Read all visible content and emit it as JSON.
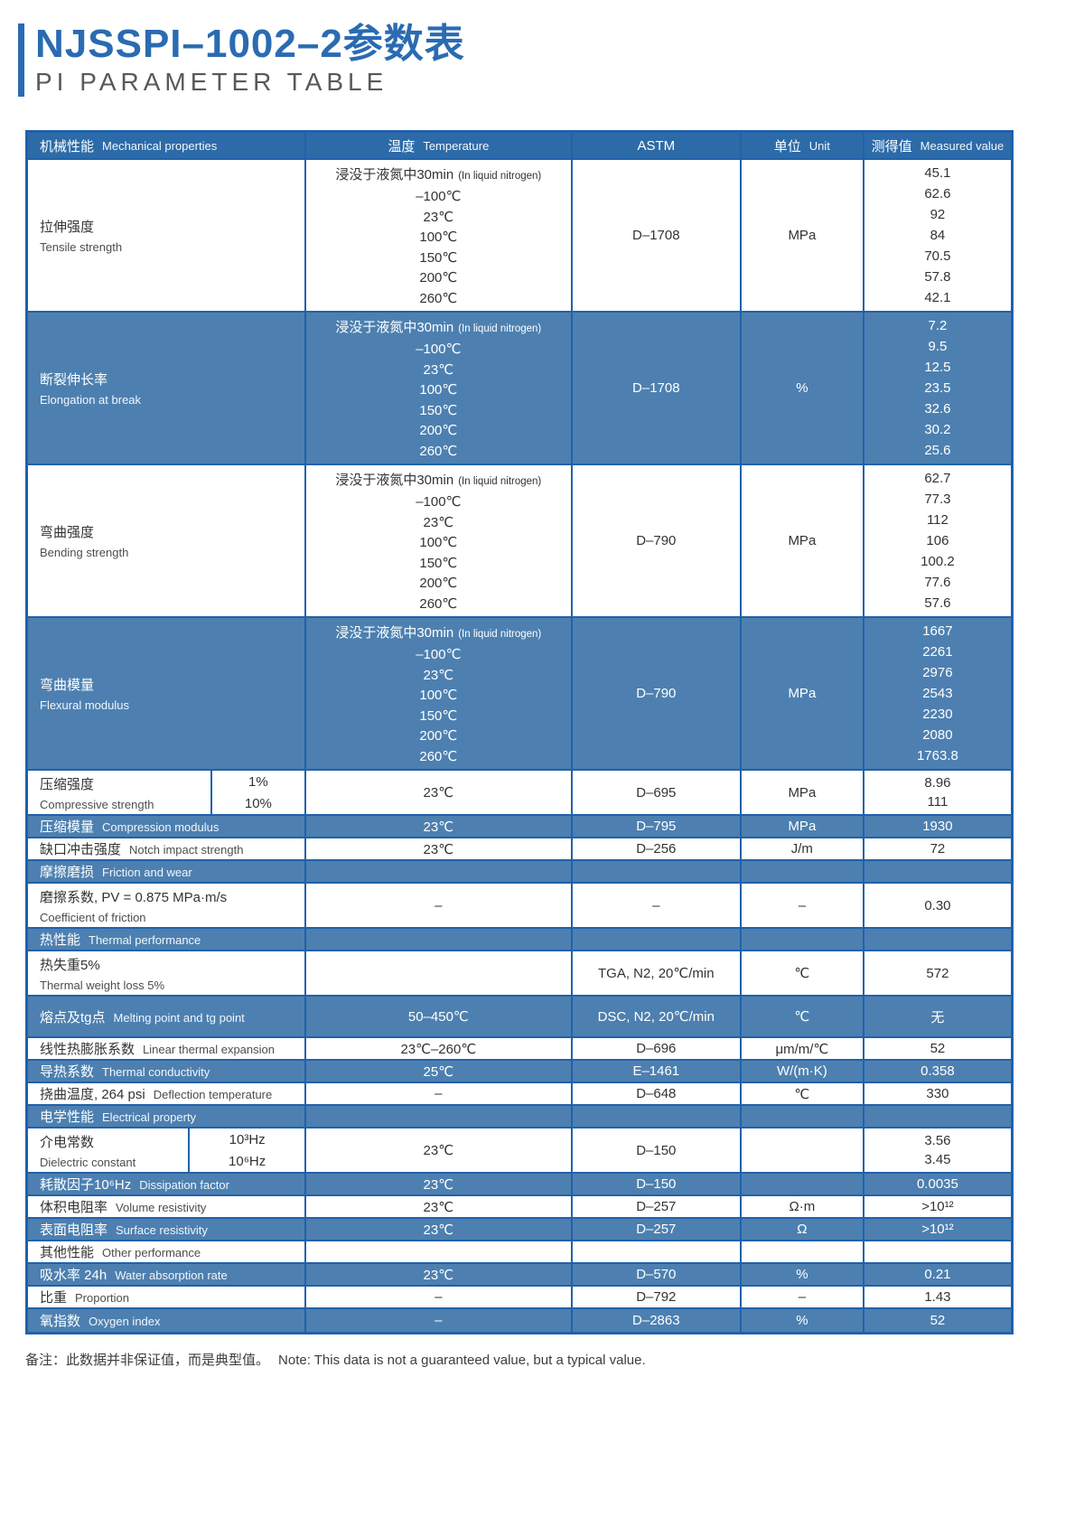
{
  "page": {
    "title": "NJSSPI–1002–2参数表",
    "subtitle": "PI PARAMETER TABLE",
    "note_zh": "备注：此数据并非保证值，而是典型值。",
    "note_en": "Note: This data is not a guaranteed value, but a typical value."
  },
  "colors": {
    "header_bg": "#2c6ba8",
    "row_blue": "#4d80b0",
    "border": "#2161ab",
    "title_blue": "#2a6bb2",
    "subtitle_gray": "#58595b"
  },
  "table": {
    "headers": [
      {
        "zh": "机械性能",
        "en": "Mechanical properties"
      },
      {
        "zh": "温度",
        "en": "Temperature"
      },
      {
        "zh": "ASTM",
        "en": ""
      },
      {
        "zh": "单位",
        "en": "Unit"
      },
      {
        "zh": "测得值",
        "en": "Measured value"
      }
    ],
    "rows": [
      {
        "kind": "block",
        "bg": "white",
        "name": "tensile-strength",
        "zh": "拉伸强度",
        "en": "Tensile strength",
        "temps": [
          {
            "t": "浸没于液氮中30min",
            "note": "(In liquid nitrogen)"
          },
          {
            "t": "–100℃"
          },
          {
            "t": "23℃"
          },
          {
            "t": "100℃"
          },
          {
            "t": "150℃"
          },
          {
            "t": "200℃"
          },
          {
            "t": "260℃"
          }
        ],
        "astm": "D–1708",
        "unit": "MPa",
        "values": [
          "45.1",
          "62.6",
          "92",
          "84",
          "70.5",
          "57.8",
          "42.1"
        ]
      },
      {
        "kind": "block",
        "bg": "blue",
        "name": "elongation-at-break",
        "zh": "断裂伸长率",
        "en": "Elongation at break",
        "temps": [
          {
            "t": "浸没于液氮中30min",
            "note": "(In liquid nitrogen)"
          },
          {
            "t": "–100℃"
          },
          {
            "t": "23℃"
          },
          {
            "t": "100℃"
          },
          {
            "t": "150℃"
          },
          {
            "t": "200℃"
          },
          {
            "t": "260℃"
          }
        ],
        "astm": "D–1708",
        "unit": "%",
        "values": [
          "7.2",
          "9.5",
          "12.5",
          "23.5",
          "32.6",
          "30.2",
          "25.6"
        ]
      },
      {
        "kind": "block",
        "bg": "white",
        "name": "bending-strength",
        "zh": "弯曲强度",
        "en": "Bending strength",
        "temps": [
          {
            "t": "浸没于液氮中30min",
            "note": "(In liquid nitrogen)"
          },
          {
            "t": "–100℃"
          },
          {
            "t": "23℃"
          },
          {
            "t": "100℃"
          },
          {
            "t": "150℃"
          },
          {
            "t": "200℃"
          },
          {
            "t": "260℃"
          }
        ],
        "astm": "D–790",
        "unit": "MPa",
        "values": [
          "62.7",
          "77.3",
          "112",
          "106",
          "100.2",
          "77.6",
          "57.6"
        ]
      },
      {
        "kind": "block",
        "bg": "blue",
        "name": "flexural-modulus",
        "zh": "弯曲模量",
        "en": "Flexural modulus",
        "temps": [
          {
            "t": "浸没于液氮中30min",
            "note": "(In liquid nitrogen)"
          },
          {
            "t": "–100℃"
          },
          {
            "t": "23℃"
          },
          {
            "t": "100℃"
          },
          {
            "t": "150℃"
          },
          {
            "t": "200℃"
          },
          {
            "t": "260℃"
          }
        ],
        "astm": "D–790",
        "unit": "MPa",
        "values": [
          "1667",
          "2261",
          "2976",
          "2543",
          "2230",
          "2080",
          "1763.8"
        ]
      },
      {
        "kind": "split",
        "bg": "white",
        "name": "compressive-strength",
        "zh": "压缩强度",
        "en": "Compressive strength",
        "subs": [
          "1%",
          "10%"
        ],
        "temp": "23℃",
        "astm": "D–695",
        "unit": "MPa",
        "values": [
          "8.96",
          "111"
        ]
      },
      {
        "kind": "simple",
        "bg": "blue",
        "name": "compression-modulus",
        "zh": "压缩模量",
        "en": "Compression modulus",
        "temp": "23℃",
        "astm": "D–795",
        "unit": "MPa",
        "value": "1930"
      },
      {
        "kind": "simple",
        "bg": "white",
        "name": "notch-impact-strength",
        "zh": "缺口冲击强度",
        "en": "Notch impact strength",
        "temp": "23℃",
        "astm": "D–256",
        "unit": "J/m",
        "value": "72"
      },
      {
        "kind": "section",
        "bg": "blue",
        "name": "friction-and-wear",
        "zh": "摩擦磨损",
        "en": "Friction and wear"
      },
      {
        "kind": "simple",
        "stacked": true,
        "bg": "white",
        "name": "coefficient-of-friction",
        "zh": "磨擦系数, PV = 0.875 MPa·m/s",
        "en": "Coefficient of friction",
        "temp": "–",
        "astm": "–",
        "unit": "–",
        "value": "0.30"
      },
      {
        "kind": "section",
        "bg": "blue",
        "name": "thermal-performance",
        "zh": "热性能",
        "en": "Thermal performance"
      },
      {
        "kind": "simple",
        "stacked": true,
        "bg": "white",
        "name": "thermal-weight-loss",
        "zh": "热失重5%",
        "en": "Thermal weight loss 5%",
        "temp": "",
        "astm": "TGA,  N2,  20℃/min",
        "unit": "℃",
        "value": "572"
      },
      {
        "kind": "simple",
        "tall": true,
        "bg": "blue",
        "name": "melting-point",
        "zh": "熔点及tg点",
        "en": "Melting point and tg point",
        "temp": "50–450℃",
        "astm": "DSC,  N2,  20℃/min",
        "unit": "℃",
        "value": "无"
      },
      {
        "kind": "simple",
        "bg": "white",
        "name": "linear-thermal-expansion",
        "zh": "线性热膨胀系数",
        "en": "Linear thermal expansion",
        "temp": "23℃–260℃",
        "astm": "D–696",
        "unit": "μm/m/℃",
        "value": "52"
      },
      {
        "kind": "simple",
        "bg": "blue",
        "name": "thermal-conductivity",
        "zh": "导热系数",
        "en": "Thermal conductivity",
        "temp": "25℃",
        "astm": "E–1461",
        "unit": "W/(m·K)",
        "value": "0.358"
      },
      {
        "kind": "simple",
        "bg": "white",
        "name": "deflection-temperature",
        "zh": "挠曲温度, 264 psi",
        "en": "Deflection temperature",
        "temp": "–",
        "astm": "D–648",
        "unit": "℃",
        "value": "330"
      },
      {
        "kind": "section",
        "bg": "blue",
        "name": "electrical-property",
        "zh": "电学性能",
        "en": "Electrical property"
      },
      {
        "kind": "split",
        "bg": "white",
        "sub_wide": true,
        "name": "dielectric-constant",
        "zh": "介电常数",
        "en": "Dielectric constant",
        "subs": [
          "10³Hz",
          "10⁶Hz"
        ],
        "temp": "23℃",
        "astm": "D–150",
        "unit": "",
        "values": [
          "3.56",
          "3.45"
        ]
      },
      {
        "kind": "simple",
        "bg": "blue",
        "name": "dissipation-factor",
        "zh": "耗散因子10⁶Hz",
        "en": "Dissipation factor",
        "temp": "23℃",
        "astm": "D–150",
        "unit": "",
        "value": "0.0035"
      },
      {
        "kind": "simple",
        "bg": "white",
        "name": "volume-resistivity",
        "zh": "体积电阻率",
        "en": "Volume resistivity",
        "temp": "23℃",
        "astm": "D–257",
        "unit": "Ω·m",
        "value": ">10¹²"
      },
      {
        "kind": "simple",
        "bg": "blue",
        "name": "surface-resistivity",
        "zh": "表面电阻率",
        "en": "Surface resistivity",
        "temp": "23℃",
        "astm": "D–257",
        "unit": "Ω",
        "value": ">10¹²"
      },
      {
        "kind": "section",
        "bg": "white",
        "name": "other-performance",
        "zh": "其他性能",
        "en": "Other performance"
      },
      {
        "kind": "simple",
        "bg": "blue",
        "name": "water-absorption-rate",
        "zh": "吸水率 24h",
        "en": "Water absorption rate",
        "temp": "23℃",
        "astm": "D–570",
        "unit": "%",
        "value": "0.21"
      },
      {
        "kind": "simple",
        "bg": "white",
        "name": "proportion",
        "zh": "比重",
        "en": "Proportion",
        "temp": "–",
        "astm": "D–792",
        "unit": "–",
        "value": "1.43"
      },
      {
        "kind": "simple",
        "bg": "blue",
        "name": "oxygen-index",
        "zh": "氧指数",
        "en": "Oxygen index",
        "temp": "–",
        "astm": "D–2863",
        "unit": "%",
        "value": "52"
      }
    ]
  }
}
